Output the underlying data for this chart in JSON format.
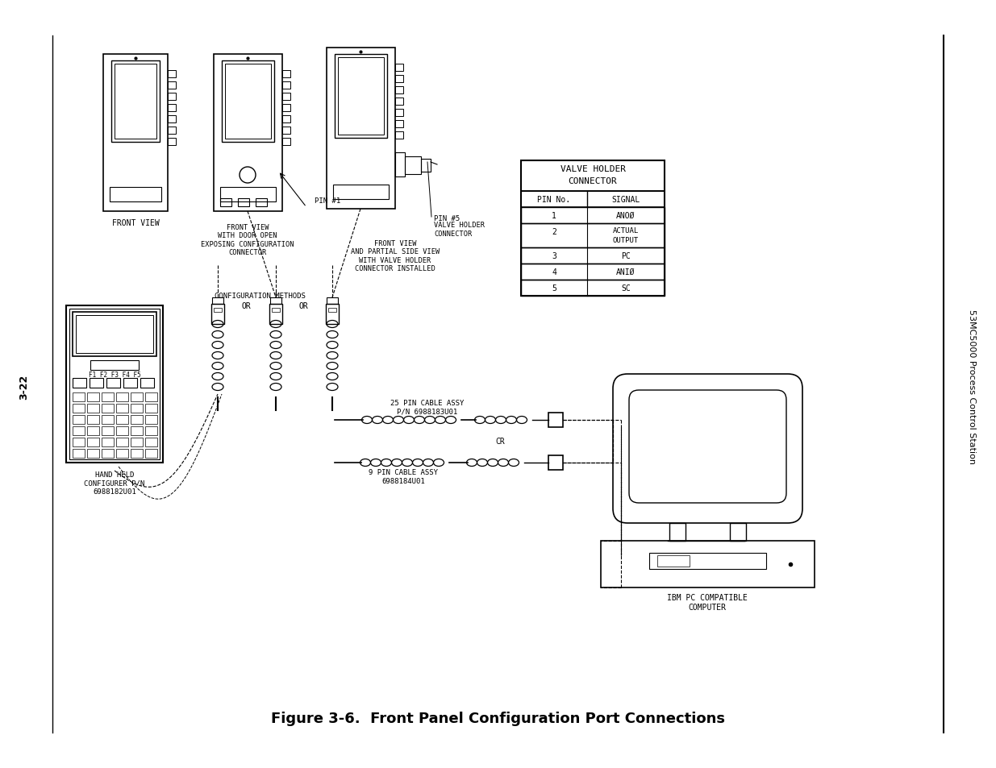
{
  "title": "Figure 3-6.  Front Panel Configuration Port Connections",
  "page_label": "3-22",
  "right_label": "53MC5000 Process Control Station",
  "bg_color": "#ffffff",
  "line_color": "#000000",
  "table_title_line1": "VALVE HOLDER",
  "table_title_line2": "CONNECTOR",
  "table_headers": [
    "PIN No.",
    "SIGNAL"
  ],
  "table_rows": [
    [
      "1",
      "ANOØ"
    ],
    [
      "2",
      "ACTUAL\nOUTPUT"
    ],
    [
      "3",
      "PC"
    ],
    [
      "4",
      "ANIØ"
    ],
    [
      "5",
      "SC"
    ]
  ],
  "labels": {
    "front_view": "FRONT VIEW",
    "front_view_door": "FRONT VIEW\nWITH DOOR OPEN\nEXPOSING CONFIGURATION\nCONNECTOR",
    "front_view_side": "FRONT VIEW\nAND PARTIAL SIDE VIEW\nWITH VALVE HOLDER\nCONNECTOR INSTALLED",
    "valve_holder_conn": "VALVE HOLDER\nCONNECTOR",
    "pin1": "PIN #1",
    "pin5": "PIN #5",
    "config_methods": "CONFIGURATION METHODS",
    "or1": "OR",
    "or2": "OR",
    "cable25": "25 PIN CABLE ASSY\nP/N 6988183U01",
    "cable9": "9 PIN CABLE ASSY\n6988184U01",
    "cr": "CR",
    "hand_held": "HAND HELD\nCONFIGURER P/N\n6988182U01",
    "ibm_pc": "IBM PC COMPATIBLE\nCOMPUTER"
  }
}
